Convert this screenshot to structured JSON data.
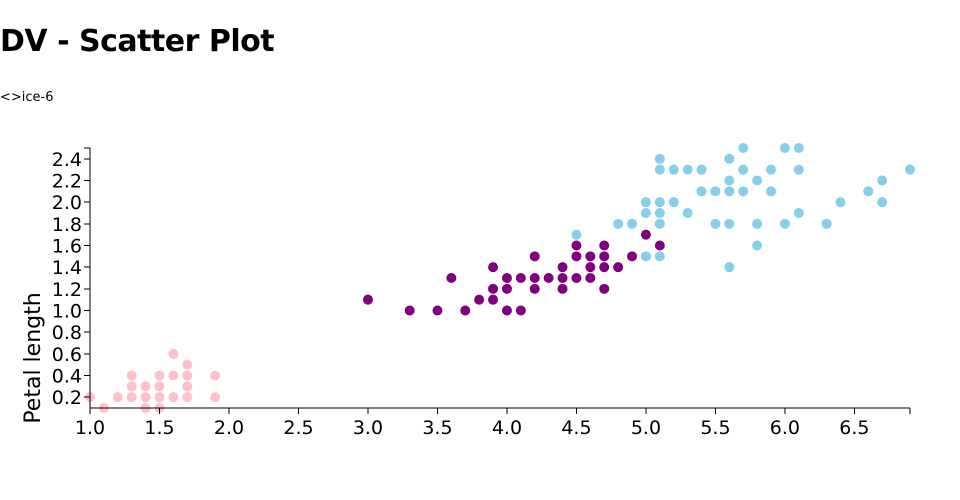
{
  "header": {
    "title": "DV - Scatter Plot",
    "subtitle": "<>ice-6"
  },
  "chart_data": {
    "type": "scatter",
    "xlabel": "",
    "ylabel": "Petal length",
    "xlim": [
      1.0,
      6.9
    ],
    "ylim": [
      0.1,
      2.5
    ],
    "x_ticks": [
      "1.0",
      "1.5",
      "2.0",
      "2.5",
      "3.0",
      "3.5",
      "4.0",
      "4.5",
      "5.0",
      "5.5",
      "6.0",
      "6.5"
    ],
    "y_ticks": [
      "0.2",
      "0.4",
      "0.6",
      "0.8",
      "1.0",
      "1.2",
      "1.4",
      "1.6",
      "1.8",
      "2.0",
      "2.2",
      "2.4"
    ],
    "grid": false,
    "legend": "none",
    "series": [
      {
        "color": "#ffc0cb",
        "points": [
          [
            1.0,
            0.2
          ],
          [
            1.1,
            0.1
          ],
          [
            1.2,
            0.2
          ],
          [
            1.3,
            0.2
          ],
          [
            1.3,
            0.3
          ],
          [
            1.3,
            0.4
          ],
          [
            1.4,
            0.1
          ],
          [
            1.4,
            0.2
          ],
          [
            1.4,
            0.3
          ],
          [
            1.5,
            0.1
          ],
          [
            1.5,
            0.2
          ],
          [
            1.5,
            0.3
          ],
          [
            1.5,
            0.4
          ],
          [
            1.6,
            0.2
          ],
          [
            1.6,
            0.4
          ],
          [
            1.6,
            0.6
          ],
          [
            1.7,
            0.2
          ],
          [
            1.7,
            0.3
          ],
          [
            1.7,
            0.4
          ],
          [
            1.7,
            0.5
          ],
          [
            1.9,
            0.2
          ],
          [
            1.9,
            0.4
          ]
        ]
      },
      {
        "color": "#800080",
        "points": [
          [
            3.0,
            1.1
          ],
          [
            3.3,
            1.0
          ],
          [
            3.5,
            1.0
          ],
          [
            3.6,
            1.3
          ],
          [
            3.7,
            1.0
          ],
          [
            3.8,
            1.1
          ],
          [
            3.9,
            1.1
          ],
          [
            3.9,
            1.2
          ],
          [
            3.9,
            1.4
          ],
          [
            4.0,
            1.0
          ],
          [
            4.0,
            1.2
          ],
          [
            4.0,
            1.3
          ],
          [
            4.1,
            1.0
          ],
          [
            4.1,
            1.3
          ],
          [
            4.2,
            1.2
          ],
          [
            4.2,
            1.3
          ],
          [
            4.2,
            1.5
          ],
          [
            4.3,
            1.3
          ],
          [
            4.4,
            1.2
          ],
          [
            4.4,
            1.3
          ],
          [
            4.4,
            1.4
          ],
          [
            4.5,
            1.3
          ],
          [
            4.5,
            1.5
          ],
          [
            4.5,
            1.6
          ],
          [
            4.6,
            1.3
          ],
          [
            4.6,
            1.4
          ],
          [
            4.6,
            1.5
          ],
          [
            4.7,
            1.2
          ],
          [
            4.7,
            1.4
          ],
          [
            4.7,
            1.5
          ],
          [
            4.7,
            1.6
          ],
          [
            4.8,
            1.4
          ],
          [
            4.9,
            1.5
          ],
          [
            5.0,
            1.7
          ],
          [
            5.1,
            1.6
          ]
        ]
      },
      {
        "color": "#87ceeb",
        "points": [
          [
            4.5,
            1.7
          ],
          [
            4.8,
            1.8
          ],
          [
            4.9,
            1.8
          ],
          [
            5.0,
            1.5
          ],
          [
            5.0,
            1.9
          ],
          [
            5.0,
            2.0
          ],
          [
            5.1,
            1.5
          ],
          [
            5.1,
            1.8
          ],
          [
            5.1,
            1.9
          ],
          [
            5.1,
            2.0
          ],
          [
            5.1,
            2.3
          ],
          [
            5.1,
            2.4
          ],
          [
            5.2,
            2.0
          ],
          [
            5.2,
            2.3
          ],
          [
            5.3,
            1.9
          ],
          [
            5.3,
            2.3
          ],
          [
            5.4,
            2.1
          ],
          [
            5.4,
            2.3
          ],
          [
            5.5,
            1.8
          ],
          [
            5.5,
            2.1
          ],
          [
            5.6,
            1.4
          ],
          [
            5.6,
            1.8
          ],
          [
            5.6,
            2.1
          ],
          [
            5.6,
            2.2
          ],
          [
            5.6,
            2.4
          ],
          [
            5.7,
            2.1
          ],
          [
            5.7,
            2.3
          ],
          [
            5.7,
            2.5
          ],
          [
            5.8,
            1.6
          ],
          [
            5.8,
            1.8
          ],
          [
            5.8,
            2.2
          ],
          [
            5.9,
            2.1
          ],
          [
            5.9,
            2.3
          ],
          [
            6.0,
            1.8
          ],
          [
            6.0,
            2.5
          ],
          [
            6.1,
            1.9
          ],
          [
            6.1,
            2.3
          ],
          [
            6.1,
            2.5
          ],
          [
            6.3,
            1.8
          ],
          [
            6.4,
            2.0
          ],
          [
            6.6,
            2.1
          ],
          [
            6.7,
            2.0
          ],
          [
            6.7,
            2.2
          ],
          [
            6.9,
            2.3
          ]
        ]
      }
    ]
  }
}
